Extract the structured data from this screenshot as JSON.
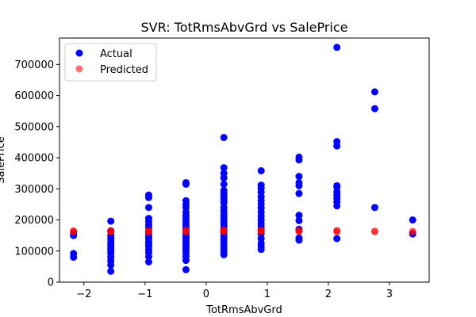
{
  "chart_data": {
    "type": "scatter",
    "title": "SVR: TotRmsAbvGrd vs SalePrice",
    "xlabel": "TotRmsAbvGrd",
    "ylabel": "SalePrice",
    "xlim": [
      -2.4,
      3.65
    ],
    "ylim": [
      0,
      785000
    ],
    "xticks": [
      -2,
      -1,
      0,
      1,
      2,
      3
    ],
    "xtick_labels": [
      "−2",
      "−1",
      "0",
      "1",
      "2",
      "3"
    ],
    "yticks": [
      0,
      100000,
      200000,
      300000,
      400000,
      500000,
      600000,
      700000
    ],
    "ytick_labels": [
      "0",
      "100000",
      "200000",
      "300000",
      "400000",
      "500000",
      "600000",
      "700000"
    ],
    "grid": false,
    "legend_position": "upper-left",
    "series": [
      {
        "name": "Actual",
        "color": "#0000ff",
        "alpha": 1.0,
        "points": [
          [
            -2.17,
            150000
          ],
          [
            -2.17,
            80000
          ],
          [
            -2.17,
            92000
          ],
          [
            -2.17,
            157000
          ],
          [
            -1.56,
            35000
          ],
          [
            -1.56,
            55000
          ],
          [
            -1.56,
            68000
          ],
          [
            -1.56,
            80000
          ],
          [
            -1.56,
            92000
          ],
          [
            -1.56,
            100000
          ],
          [
            -1.56,
            108000
          ],
          [
            -1.56,
            115000
          ],
          [
            -1.56,
            122000
          ],
          [
            -1.56,
            130000
          ],
          [
            -1.56,
            140000
          ],
          [
            -1.56,
            150000
          ],
          [
            -1.56,
            165000
          ],
          [
            -1.56,
            196000
          ],
          [
            -0.94,
            65000
          ],
          [
            -0.94,
            82000
          ],
          [
            -0.94,
            95000
          ],
          [
            -0.94,
            105000
          ],
          [
            -0.94,
            115000
          ],
          [
            -0.94,
            122000
          ],
          [
            -0.94,
            130000
          ],
          [
            -0.94,
            138000
          ],
          [
            -0.94,
            145000
          ],
          [
            -0.94,
            155000
          ],
          [
            -0.94,
            165000
          ],
          [
            -0.94,
            175000
          ],
          [
            -0.94,
            185000
          ],
          [
            -0.94,
            195000
          ],
          [
            -0.94,
            205000
          ],
          [
            -0.94,
            240000
          ],
          [
            -0.94,
            272000
          ],
          [
            -0.94,
            280000
          ],
          [
            -0.33,
            40000
          ],
          [
            -0.33,
            70000
          ],
          [
            -0.33,
            82000
          ],
          [
            -0.33,
            92000
          ],
          [
            -0.33,
            100000
          ],
          [
            -0.33,
            108000
          ],
          [
            -0.33,
            115000
          ],
          [
            -0.33,
            122000
          ],
          [
            -0.33,
            128000
          ],
          [
            -0.33,
            135000
          ],
          [
            -0.33,
            142000
          ],
          [
            -0.33,
            150000
          ],
          [
            -0.33,
            158000
          ],
          [
            -0.33,
            165000
          ],
          [
            -0.33,
            172000
          ],
          [
            -0.33,
            180000
          ],
          [
            -0.33,
            188000
          ],
          [
            -0.33,
            195000
          ],
          [
            -0.33,
            205000
          ],
          [
            -0.33,
            215000
          ],
          [
            -0.33,
            225000
          ],
          [
            -0.33,
            240000
          ],
          [
            -0.33,
            250000
          ],
          [
            -0.33,
            262000
          ],
          [
            -0.33,
            315000
          ],
          [
            -0.33,
            320000
          ],
          [
            0.29,
            88000
          ],
          [
            0.29,
            98000
          ],
          [
            0.29,
            108000
          ],
          [
            0.29,
            118000
          ],
          [
            0.29,
            128000
          ],
          [
            0.29,
            138000
          ],
          [
            0.29,
            148000
          ],
          [
            0.29,
            158000
          ],
          [
            0.29,
            168000
          ],
          [
            0.29,
            178000
          ],
          [
            0.29,
            188000
          ],
          [
            0.29,
            198000
          ],
          [
            0.29,
            208000
          ],
          [
            0.29,
            218000
          ],
          [
            0.29,
            228000
          ],
          [
            0.29,
            240000
          ],
          [
            0.29,
            255000
          ],
          [
            0.29,
            265000
          ],
          [
            0.29,
            275000
          ],
          [
            0.29,
            285000
          ],
          [
            0.29,
            295000
          ],
          [
            0.29,
            315000
          ],
          [
            0.29,
            335000
          ],
          [
            0.29,
            350000
          ],
          [
            0.29,
            368000
          ],
          [
            0.29,
            465000
          ],
          [
            0.9,
            105000
          ],
          [
            0.9,
            115000
          ],
          [
            0.9,
            125000
          ],
          [
            0.9,
            140000
          ],
          [
            0.9,
            155000
          ],
          [
            0.9,
            170000
          ],
          [
            0.9,
            180000
          ],
          [
            0.9,
            190000
          ],
          [
            0.9,
            200000
          ],
          [
            0.9,
            212000
          ],
          [
            0.9,
            225000
          ],
          [
            0.9,
            238000
          ],
          [
            0.9,
            250000
          ],
          [
            0.9,
            262000
          ],
          [
            0.9,
            275000
          ],
          [
            0.9,
            290000
          ],
          [
            0.9,
            302000
          ],
          [
            0.9,
            312000
          ],
          [
            0.9,
            358000
          ],
          [
            1.52,
            135000
          ],
          [
            1.52,
            142000
          ],
          [
            1.52,
            170000
          ],
          [
            1.52,
            198000
          ],
          [
            1.52,
            215000
          ],
          [
            1.52,
            285000
          ],
          [
            1.52,
            310000
          ],
          [
            1.52,
            320000
          ],
          [
            1.52,
            340000
          ],
          [
            1.52,
            393000
          ],
          [
            1.52,
            402000
          ],
          [
            2.14,
            140000
          ],
          [
            2.14,
            245000
          ],
          [
            2.14,
            258000
          ],
          [
            2.14,
            270000
          ],
          [
            2.14,
            280000
          ],
          [
            2.14,
            290000
          ],
          [
            2.14,
            305000
          ],
          [
            2.14,
            310000
          ],
          [
            2.14,
            438000
          ],
          [
            2.14,
            452000
          ],
          [
            2.14,
            755000
          ],
          [
            2.76,
            240000
          ],
          [
            2.76,
            558000
          ],
          [
            2.76,
            612000
          ],
          [
            3.38,
            155000
          ],
          [
            3.38,
            200000
          ]
        ]
      },
      {
        "name": "Predicted",
        "color": "#ff0000",
        "alpha": 0.55,
        "points": [
          [
            -2.17,
            163000
          ],
          [
            -2.17,
            161000
          ],
          [
            -2.17,
            165000
          ],
          [
            -1.56,
            163000
          ],
          [
            -1.56,
            161000
          ],
          [
            -1.56,
            165000
          ],
          [
            -1.56,
            162000
          ],
          [
            -0.94,
            163000
          ],
          [
            -0.94,
            161000
          ],
          [
            -0.94,
            166000
          ],
          [
            -0.94,
            162000
          ],
          [
            -0.33,
            164000
          ],
          [
            -0.33,
            161000
          ],
          [
            -0.33,
            167000
          ],
          [
            -0.33,
            163000
          ],
          [
            0.29,
            165000
          ],
          [
            0.29,
            162000
          ],
          [
            0.29,
            168000
          ],
          [
            0.29,
            163000
          ],
          [
            0.9,
            164000
          ],
          [
            0.9,
            162000
          ],
          [
            0.9,
            167000
          ],
          [
            0.9,
            163000
          ],
          [
            1.52,
            164000
          ],
          [
            1.52,
            162000
          ],
          [
            1.52,
            166000
          ],
          [
            2.14,
            164000
          ],
          [
            2.14,
            162000
          ],
          [
            2.14,
            166000
          ],
          [
            2.76,
            164000
          ],
          [
            2.76,
            162000
          ],
          [
            3.38,
            163000
          ],
          [
            3.38,
            161000
          ]
        ]
      }
    ]
  }
}
